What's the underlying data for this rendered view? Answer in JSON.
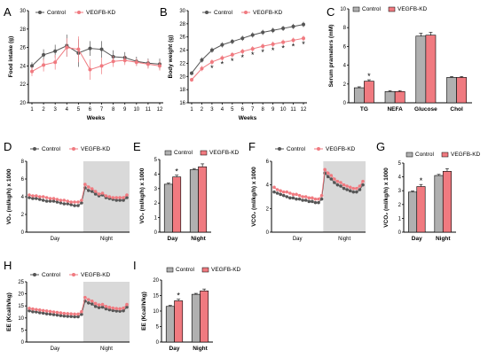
{
  "colors": {
    "control": "#555555",
    "kd": "#f07a80",
    "night": "#d9d9d9",
    "bar_control": "#b0b0b0",
    "bar_kd": "#f07a80"
  },
  "legend": {
    "control": "Control",
    "kd": "VEGFB-KD"
  },
  "chart_data": [
    {
      "panel": "A",
      "type": "line",
      "xlabel": "Weeks",
      "ylabel": "Food intake (g)",
      "x": [
        1,
        2,
        3,
        4,
        5,
        6,
        7,
        8,
        9,
        10,
        11,
        12
      ],
      "xticks": [
        "1",
        "2",
        "3",
        "4",
        "5",
        "6",
        "7",
        "8",
        "9",
        "10",
        "11",
        "12"
      ],
      "ylim": [
        20,
        30
      ],
      "yticks": [
        "20",
        "22",
        "24",
        "26",
        "28",
        "30"
      ],
      "series": [
        {
          "name": "Control",
          "values": [
            24.0,
            25.2,
            25.6,
            26.2,
            25.4,
            25.9,
            25.8,
            25.0,
            24.9,
            24.5,
            24.3,
            24.2
          ],
          "err": [
            0.4,
            0.6,
            0.7,
            1.2,
            1.5,
            0.8,
            0.9,
            0.7,
            0.6,
            0.5,
            0.5,
            0.6
          ]
        },
        {
          "name": "VEGFB-KD",
          "values": [
            23.4,
            24.1,
            24.4,
            26.0,
            25.8,
            23.6,
            24.0,
            24.5,
            24.6,
            24.4,
            24.2,
            24.0
          ],
          "err": [
            0.5,
            0.7,
            0.8,
            1.0,
            1.4,
            1.1,
            0.9,
            0.6,
            0.5,
            0.4,
            0.5,
            0.5
          ]
        }
      ]
    },
    {
      "panel": "B",
      "type": "line",
      "xlabel": "Weeks",
      "ylabel": "Body weight (g)",
      "x": [
        1,
        2,
        3,
        4,
        5,
        6,
        7,
        8,
        9,
        10,
        11,
        12
      ],
      "xticks": [
        "1",
        "2",
        "3",
        "4",
        "5",
        "6",
        "7",
        "8",
        "9",
        "10",
        "11",
        "12"
      ],
      "ylim": [
        16,
        30
      ],
      "yticks": [
        "16",
        "18",
        "20",
        "22",
        "24",
        "26",
        "28",
        "30"
      ],
      "series": [
        {
          "name": "Control",
          "values": [
            20.5,
            22.5,
            24.0,
            24.8,
            25.3,
            25.8,
            26.3,
            26.7,
            27.0,
            27.3,
            27.6,
            27.9
          ],
          "err": [
            0.3,
            0.4,
            0.4,
            0.4,
            0.4,
            0.4,
            0.4,
            0.4,
            0.4,
            0.4,
            0.4,
            0.4
          ]
        },
        {
          "name": "VEGFB-KD",
          "values": [
            19.5,
            21.2,
            22.2,
            22.8,
            23.3,
            23.8,
            24.2,
            24.6,
            24.9,
            25.2,
            25.5,
            25.8
          ],
          "err": [
            0.3,
            0.4,
            0.4,
            0.4,
            0.4,
            0.4,
            0.4,
            0.4,
            0.4,
            0.4,
            0.4,
            0.4
          ]
        }
      ],
      "sig": [
        "",
        "",
        "*",
        "*",
        "*",
        "*",
        "*",
        "*",
        "*",
        "*",
        "*",
        "*"
      ]
    },
    {
      "panel": "C",
      "type": "bar",
      "ylabel": "Serum pramaters (mM)",
      "categories": [
        "TG",
        "NEFA",
        "Glucose",
        "Chol"
      ],
      "ylim": [
        0,
        10
      ],
      "yticks": [
        "0",
        "2",
        "4",
        "6",
        "8",
        "10"
      ],
      "series": [
        {
          "name": "Control",
          "values": [
            1.6,
            1.2,
            7.1,
            2.7
          ],
          "err": [
            0.1,
            0.1,
            0.3,
            0.1
          ]
        },
        {
          "name": "VEGFB-KD",
          "values": [
            2.3,
            1.2,
            7.2,
            2.7
          ],
          "err": [
            0.15,
            0.1,
            0.3,
            0.1
          ]
        }
      ],
      "sig": [
        "*",
        "",
        "",
        ""
      ]
    },
    {
      "panel": "D",
      "type": "line",
      "ylabel": "VO₂ (ml/kg/h) x 1000",
      "xticks": [
        "Day",
        "Night"
      ],
      "ylim": [
        0,
        8
      ],
      "yticks": [
        "0",
        "2",
        "4",
        "6",
        "8"
      ],
      "series": [
        {
          "name": "Control",
          "values": [
            3.9,
            3.8,
            3.8,
            3.7,
            3.6,
            3.5,
            3.5,
            3.5,
            3.4,
            3.3,
            3.2,
            3.2,
            3.1,
            3.0,
            3.0,
            3.3,
            5.0,
            4.7,
            4.6,
            4.3,
            4.1,
            4.2,
            3.9,
            3.8,
            3.7,
            3.6,
            3.6,
            3.6,
            3.9
          ]
        },
        {
          "name": "VEGFB-KD",
          "values": [
            4.2,
            4.1,
            4.1,
            4.0,
            4.0,
            3.9,
            3.8,
            3.8,
            3.7,
            3.6,
            3.6,
            3.5,
            3.4,
            3.4,
            3.4,
            3.6,
            5.4,
            5.1,
            4.9,
            4.6,
            4.3,
            4.4,
            4.1,
            4.0,
            3.9,
            3.9,
            3.9,
            3.9,
            4.2
          ]
        }
      ]
    },
    {
      "panel": "E",
      "type": "bar",
      "ylabel": "VO₂ (ml/kg/h) x 1000",
      "categories": [
        "Day",
        "Night"
      ],
      "ylim": [
        0,
        5
      ],
      "yticks": [
        "0",
        "1",
        "2",
        "3",
        "4",
        "5"
      ],
      "series": [
        {
          "name": "Control",
          "values": [
            3.3,
            4.3
          ],
          "err": [
            0.08,
            0.08
          ]
        },
        {
          "name": "VEGFB-KD",
          "values": [
            3.8,
            4.5
          ],
          "err": [
            0.12,
            0.2
          ]
        }
      ],
      "sig": [
        "*",
        ""
      ]
    },
    {
      "panel": "F",
      "type": "line",
      "ylabel": "VCO₂ (ml/kg/h) x 1000",
      "xticks": [
        "Day",
        "Night"
      ],
      "ylim": [
        0,
        6
      ],
      "yticks": [
        "0",
        "2",
        "4",
        "6"
      ],
      "series": [
        {
          "name": "Control",
          "values": [
            3.4,
            3.3,
            3.2,
            3.1,
            3.0,
            2.9,
            2.9,
            2.8,
            2.8,
            2.7,
            2.7,
            2.6,
            2.6,
            2.5,
            2.5,
            2.8,
            5.0,
            4.7,
            4.5,
            4.2,
            4.0,
            3.9,
            3.7,
            3.6,
            3.5,
            3.4,
            3.4,
            3.6,
            4.0
          ]
        },
        {
          "name": "VEGFB-KD",
          "values": [
            3.8,
            3.6,
            3.5,
            3.4,
            3.4,
            3.3,
            3.2,
            3.2,
            3.1,
            3.0,
            3.0,
            2.9,
            2.9,
            2.8,
            2.8,
            3.1,
            5.3,
            5.0,
            4.8,
            4.5,
            4.3,
            4.2,
            4.0,
            3.9,
            3.8,
            3.7,
            3.7,
            3.9,
            4.3
          ]
        }
      ]
    },
    {
      "panel": "G",
      "type": "bar",
      "ylabel": "VCO₂ (ml/kg/h) x 1000",
      "categories": [
        "Day",
        "Night"
      ],
      "ylim": [
        0,
        5
      ],
      "yticks": [
        "0",
        "1",
        "2",
        "3",
        "4",
        "5"
      ],
      "series": [
        {
          "name": "Control",
          "values": [
            2.9,
            4.1
          ],
          "err": [
            0.08,
            0.08
          ]
        },
        {
          "name": "VEGFB-KD",
          "values": [
            3.3,
            4.4
          ],
          "err": [
            0.15,
            0.2
          ]
        }
      ],
      "sig": [
        "*",
        ""
      ]
    },
    {
      "panel": "H",
      "type": "line",
      "ylabel": "EE (Kcal/h/kg)",
      "xticks": [
        "Day",
        "Night"
      ],
      "ylim": [
        0,
        25
      ],
      "yticks": [
        "0",
        "5",
        "10",
        "15",
        "20",
        "25"
      ],
      "series": [
        {
          "name": "Control",
          "values": [
            13.0,
            12.6,
            12.5,
            12.2,
            12.0,
            11.7,
            11.6,
            11.4,
            11.2,
            11.0,
            10.8,
            10.7,
            10.6,
            10.5,
            10.5,
            11.5,
            17.0,
            16.2,
            15.8,
            14.8,
            14.3,
            14.5,
            13.8,
            13.4,
            13.1,
            12.9,
            12.8,
            13.0,
            14.5
          ]
        },
        {
          "name": "VEGFB-KD",
          "values": [
            14.0,
            13.7,
            13.5,
            13.3,
            13.1,
            12.9,
            12.7,
            12.5,
            12.3,
            12.1,
            11.9,
            11.8,
            11.7,
            11.6,
            11.6,
            12.6,
            18.5,
            17.6,
            17.0,
            16.0,
            15.4,
            15.6,
            14.8,
            14.4,
            14.1,
            13.9,
            13.8,
            14.1,
            15.6
          ]
        }
      ]
    },
    {
      "panel": "I",
      "type": "bar",
      "ylabel": "EE (Kcal/h/kg)",
      "categories": [
        "Day",
        "Night"
      ],
      "ylim": [
        0,
        20
      ],
      "yticks": [
        "0",
        "5",
        "10",
        "15",
        "20"
      ],
      "series": [
        {
          "name": "Control",
          "values": [
            11.5,
            15.4
          ],
          "err": [
            0.3,
            0.3
          ]
        },
        {
          "name": "VEGFB-KD",
          "values": [
            13.3,
            16.5
          ],
          "err": [
            0.5,
            0.6
          ]
        }
      ],
      "sig": [
        "*",
        ""
      ]
    }
  ]
}
